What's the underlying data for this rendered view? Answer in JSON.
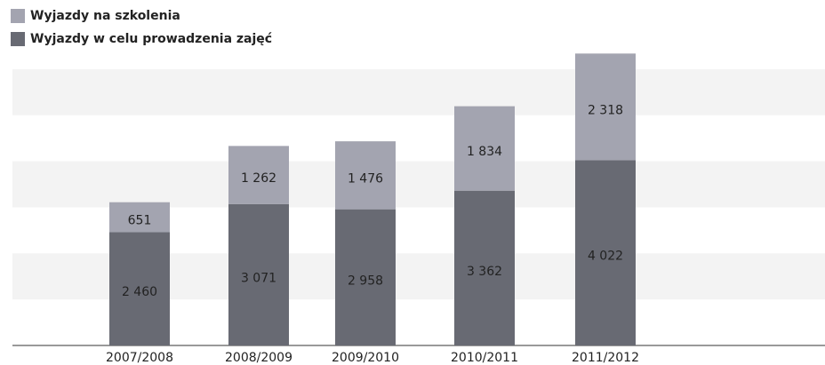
{
  "chart_data": {
    "type": "stacked_bar",
    "categories": [
      "2007/2008",
      "2008/2009",
      "2009/2010",
      "2010/2011",
      "2011/2012"
    ],
    "series": [
      {
        "name": "Wyjazdy w celu prowadzenia zajęć",
        "color": "#686a73",
        "values": [
          2460,
          3071,
          2958,
          3362,
          4022
        ],
        "value_labels": [
          "2 460",
          "3 071",
          "2 958",
          "3 362",
          "4 022"
        ]
      },
      {
        "name": "Wyjazdy na szkolenia",
        "color": "#a3a4b0",
        "values": [
          651,
          1262,
          1476,
          1834,
          2318
        ],
        "value_labels": [
          "651",
          "1 262",
          "1 476",
          "1 834",
          "2 318"
        ]
      }
    ],
    "ylim": [
      0,
      6500
    ],
    "yticks": [
      0,
      1000,
      2000,
      3000,
      4000,
      5000,
      6000
    ],
    "band_color": "#f3f3f3",
    "grid": "bands"
  }
}
